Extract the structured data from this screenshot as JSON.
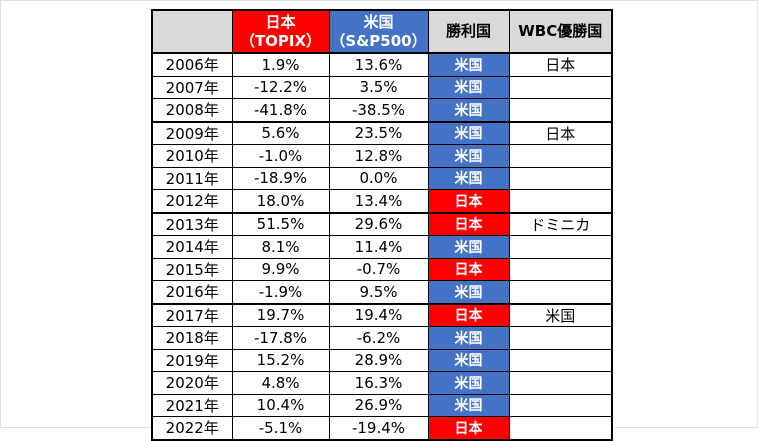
{
  "colors": {
    "japan_red": "#FF0000",
    "us_blue": "#4472C4",
    "header_gray": "#D9D9D9",
    "border_black": "#000000",
    "text_black": "#000000",
    "text_white": "#FFFFFF"
  },
  "chart_data": {
    "type": "table",
    "title": "",
    "columns": [
      {
        "key": "year",
        "label": "",
        "header_bg": "gray",
        "width": 80
      },
      {
        "key": "topix",
        "label": "日本\n（TOPIX）",
        "header_bg": "red",
        "width": 97
      },
      {
        "key": "sp500",
        "label": "米国\n（S&P500）",
        "header_bg": "blue",
        "width": 99
      },
      {
        "key": "winner",
        "label": "勝利国",
        "header_bg": "gray",
        "width": 81
      },
      {
        "key": "wbc",
        "label": "WBC優勝国",
        "header_bg": "gray",
        "width": 103
      }
    ],
    "rows": [
      {
        "year": "2006年",
        "topix": "1.9%",
        "sp500": "13.6%",
        "topix_pct": 1.9,
        "sp500_pct": 13.6,
        "winner": "米国",
        "winner_side": "us",
        "wbc": "日本",
        "wbc_year": true
      },
      {
        "year": "2007年",
        "topix": "-12.2%",
        "sp500": "3.5%",
        "topix_pct": -12.2,
        "sp500_pct": 3.5,
        "winner": "米国",
        "winner_side": "us",
        "wbc": "",
        "wbc_year": false
      },
      {
        "year": "2008年",
        "topix": "-41.8%",
        "sp500": "-38.5%",
        "topix_pct": -41.8,
        "sp500_pct": -38.5,
        "winner": "米国",
        "winner_side": "us",
        "wbc": "",
        "wbc_year": false
      },
      {
        "year": "2009年",
        "topix": "5.6%",
        "sp500": "23.5%",
        "topix_pct": 5.6,
        "sp500_pct": 23.5,
        "winner": "米国",
        "winner_side": "us",
        "wbc": "日本",
        "wbc_year": true
      },
      {
        "year": "2010年",
        "topix": "-1.0%",
        "sp500": "12.8%",
        "topix_pct": -1.0,
        "sp500_pct": 12.8,
        "winner": "米国",
        "winner_side": "us",
        "wbc": "",
        "wbc_year": false
      },
      {
        "year": "2011年",
        "topix": "-18.9%",
        "sp500": "0.0%",
        "topix_pct": -18.9,
        "sp500_pct": 0.0,
        "winner": "米国",
        "winner_side": "us",
        "wbc": "",
        "wbc_year": false
      },
      {
        "year": "2012年",
        "topix": "18.0%",
        "sp500": "13.4%",
        "topix_pct": 18.0,
        "sp500_pct": 13.4,
        "winner": "日本",
        "winner_side": "japan",
        "wbc": "",
        "wbc_year": false
      },
      {
        "year": "2013年",
        "topix": "51.5%",
        "sp500": "29.6%",
        "topix_pct": 51.5,
        "sp500_pct": 29.6,
        "winner": "日本",
        "winner_side": "japan",
        "wbc": "ドミニカ",
        "wbc_year": true
      },
      {
        "year": "2014年",
        "topix": "8.1%",
        "sp500": "11.4%",
        "topix_pct": 8.1,
        "sp500_pct": 11.4,
        "winner": "米国",
        "winner_side": "us",
        "wbc": "",
        "wbc_year": false
      },
      {
        "year": "2015年",
        "topix": "9.9%",
        "sp500": "-0.7%",
        "topix_pct": 9.9,
        "sp500_pct": -0.7,
        "winner": "日本",
        "winner_side": "japan",
        "wbc": "",
        "wbc_year": false
      },
      {
        "year": "2016年",
        "topix": "-1.9%",
        "sp500": "9.5%",
        "topix_pct": -1.9,
        "sp500_pct": 9.5,
        "winner": "米国",
        "winner_side": "us",
        "wbc": "",
        "wbc_year": false
      },
      {
        "year": "2017年",
        "topix": "19.7%",
        "sp500": "19.4%",
        "topix_pct": 19.7,
        "sp500_pct": 19.4,
        "winner": "日本",
        "winner_side": "japan",
        "wbc": "米国",
        "wbc_year": true
      },
      {
        "year": "2018年",
        "topix": "-17.8%",
        "sp500": "-6.2%",
        "topix_pct": -17.8,
        "sp500_pct": -6.2,
        "winner": "米国",
        "winner_side": "us",
        "wbc": "",
        "wbc_year": false
      },
      {
        "year": "2019年",
        "topix": "15.2%",
        "sp500": "28.9%",
        "topix_pct": 15.2,
        "sp500_pct": 28.9,
        "winner": "米国",
        "winner_side": "us",
        "wbc": "",
        "wbc_year": false
      },
      {
        "year": "2020年",
        "topix": "4.8%",
        "sp500": "16.3%",
        "topix_pct": 4.8,
        "sp500_pct": 16.3,
        "winner": "米国",
        "winner_side": "us",
        "wbc": "",
        "wbc_year": false
      },
      {
        "year": "2021年",
        "topix": "10.4%",
        "sp500": "26.9%",
        "topix_pct": 10.4,
        "sp500_pct": 26.9,
        "winner": "米国",
        "winner_side": "us",
        "wbc": "",
        "wbc_year": false
      },
      {
        "year": "2022年",
        "topix": "-5.1%",
        "sp500": "-19.4%",
        "topix_pct": -5.1,
        "sp500_pct": -19.4,
        "winner": "日本",
        "winner_side": "japan",
        "wbc": "",
        "wbc_year": false
      }
    ]
  }
}
